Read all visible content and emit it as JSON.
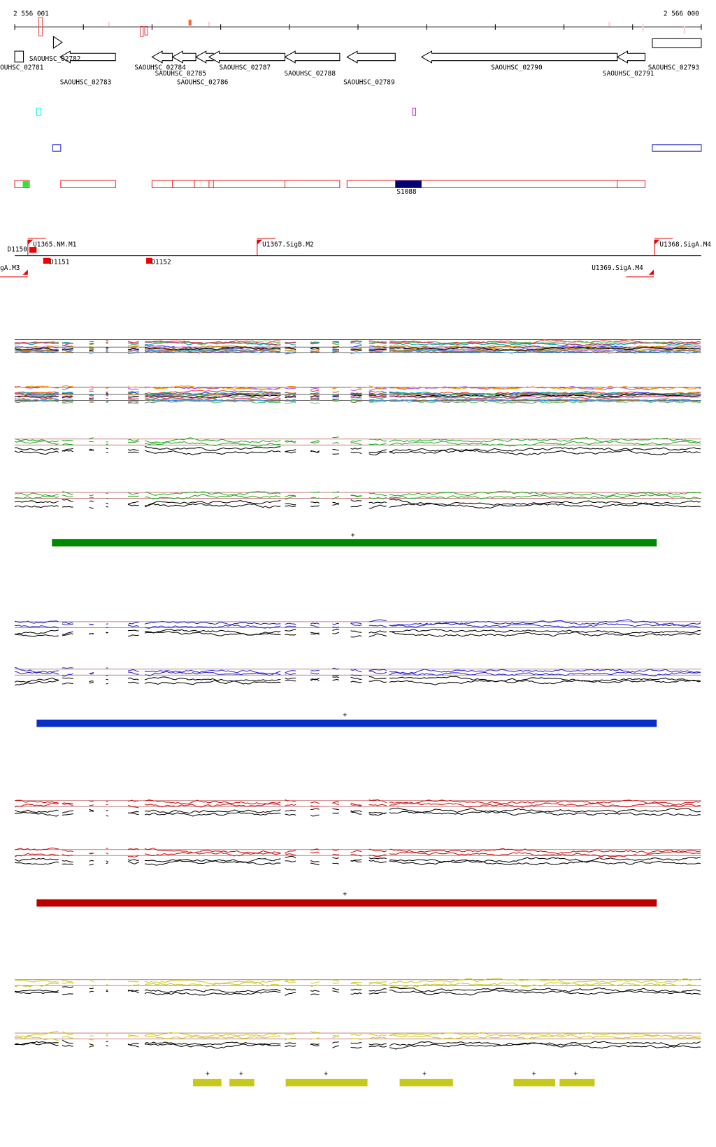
{
  "ruler": {
    "start": "2 556 001",
    "end": "2 566 000"
  },
  "genes": [
    "OUHSC_02781",
    "SAOUHSC_02782",
    "SAOUHSC_02783",
    "SAOUHSC_02784",
    "SAOUHSC_02785",
    "SAOUHSC_02786",
    "SAOUHSC_02787",
    "SAOUHSC_02788",
    "SAOUHSC_02789",
    "SAOUHSC_02790",
    "SAOUHSC_02791",
    "SAOUHSC_02793"
  ],
  "segment": "S1088",
  "features": [
    "D1150",
    "U1365.NM.M1",
    "D1151",
    "D1152",
    "U1367.SigB.M2",
    "U1368.SigA.M4",
    "gA.M3",
    "U1369.SigA.M4"
  ],
  "plus_marks": [
    "+",
    "+",
    "+",
    "+",
    "+",
    "+",
    "+",
    "+",
    "+"
  ]
}
